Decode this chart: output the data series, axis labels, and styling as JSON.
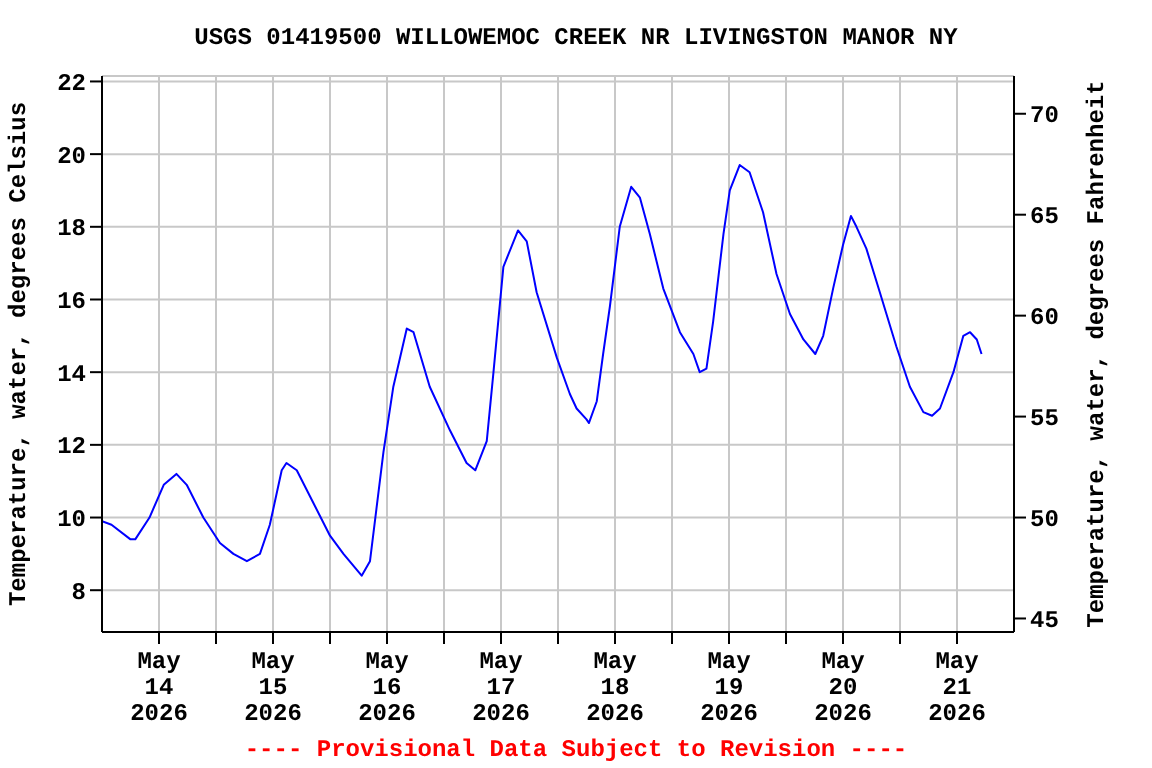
{
  "chart_data": {
    "type": "line",
    "title": "USGS 01419500 WILLOWEMOC CREEK NR LIVINGSTON MANOR NY",
    "ylabel": "Temperature, water, degrees Celsius",
    "y2label": "Temperature, water, degrees Fahrenheit",
    "annotations": [
      "---- Provisional Data Subject to Revision ----"
    ],
    "x": [
      "2026-05-13T12:00",
      "2026-05-13T14:00",
      "2026-05-13T18:00",
      "2026-05-13T19:00",
      "2026-05-13T22:00",
      "2026-05-14T01:00",
      "2026-05-14T03:40",
      "2026-05-14T05:50",
      "2026-05-14T09:20",
      "2026-05-14T12:50",
      "2026-05-14T15:40",
      "2026-05-14T18:30",
      "2026-05-14T21:15",
      "2026-05-14T23:20",
      "2026-05-15T01:50",
      "2026-05-15T02:50",
      "2026-05-15T05:00",
      "2026-05-15T08:30",
      "2026-05-15T12:00",
      "2026-05-15T14:50",
      "2026-05-15T18:40",
      "2026-05-15T20:25",
      "2026-05-15T23:15",
      "2026-05-16T01:20",
      "2026-05-16T04:10",
      "2026-05-16T05:35",
      "2026-05-16T09:00",
      "2026-05-16T13:15",
      "2026-05-16T16:45",
      "2026-05-16T18:35",
      "2026-05-16T21:00",
      "2026-05-16T22:25",
      "2026-05-17T00:30",
      "2026-05-17T03:35",
      "2026-05-17T05:25",
      "2026-05-17T07:30",
      "2026-05-17T11:45",
      "2026-05-17T14:30",
      "2026-05-17T15:55",
      "2026-05-17T18:00",
      "2026-05-17T18:30",
      "2026-05-17T20:10",
      "2026-05-17T21:30",
      "2026-05-17T22:55",
      "2026-05-18T01:00",
      "2026-05-18T03:25",
      "2026-05-18T05:15",
      "2026-05-18T07:20",
      "2026-05-18T10:10",
      "2026-05-18T13:40",
      "2026-05-18T16:30",
      "2026-05-18T17:50",
      "2026-05-18T19:15",
      "2026-05-18T20:40",
      "2026-05-18T22:50",
      "2026-05-19T00:10",
      "2026-05-19T02:15",
      "2026-05-19T04:20",
      "2026-05-19T07:10",
      "2026-05-19T10:00",
      "2026-05-19T12:50",
      "2026-05-19T15:40",
      "2026-05-19T18:10",
      "2026-05-19T19:50",
      "2026-05-19T21:55",
      "2026-05-20T00:00",
      "2026-05-20T01:40",
      "2026-05-20T02:50",
      "2026-05-20T04:55",
      "2026-05-20T07:45",
      "2026-05-20T11:15",
      "2026-05-20T14:05",
      "2026-05-20T16:55",
      "2026-05-20T18:45",
      "2026-05-20T20:25",
      "2026-05-20T23:15",
      "2026-05-21T01:20",
      "2026-05-21T02:45",
      "2026-05-21T04:10",
      "2026-05-21T05:10"
    ],
    "series": [
      {
        "color": "#0000ff",
        "values": [
          9.9,
          9.8,
          9.4,
          9.4,
          10.0,
          10.9,
          11.2,
          10.9,
          10.0,
          9.3,
          9.0,
          8.8,
          9.0,
          9.8,
          11.3,
          11.5,
          11.3,
          10.4,
          9.5,
          9.0,
          8.4,
          8.8,
          11.8,
          13.6,
          15.2,
          15.1,
          13.6,
          12.4,
          11.5,
          11.3,
          12.1,
          14.0,
          16.9,
          17.9,
          17.6,
          16.2,
          14.4,
          13.4,
          13.0,
          12.7,
          12.6,
          13.2,
          14.5,
          15.8,
          18.0,
          19.1,
          18.8,
          17.8,
          16.3,
          15.1,
          14.5,
          14.0,
          14.1,
          15.4,
          17.8,
          19.0,
          19.7,
          19.5,
          18.4,
          16.7,
          15.6,
          14.9,
          14.5,
          15.0,
          16.3,
          17.5,
          18.3,
          18.0,
          17.4,
          16.2,
          14.7,
          13.6,
          12.9,
          12.8,
          13.0,
          14.0,
          15.0,
          15.1,
          14.9,
          14.5
        ]
      }
    ],
    "xlim": [
      "2026-05-13T12:00",
      "2026-05-21T12:00"
    ],
    "xticks": [
      {
        "value": "2026-05-14T00:00",
        "label": "May 14 2026"
      },
      {
        "value": "2026-05-14T12:00",
        "label": null
      },
      {
        "value": "2026-05-15T00:00",
        "label": "May 15 2026"
      },
      {
        "value": "2026-05-15T12:00",
        "label": null
      },
      {
        "value": "2026-05-16T00:00",
        "label": "May 16 2026"
      },
      {
        "value": "2026-05-16T12:00",
        "label": null
      },
      {
        "value": "2026-05-17T00:00",
        "label": "May 17 2026"
      },
      {
        "value": "2026-05-17T12:00",
        "label": null
      },
      {
        "value": "2026-05-18T00:00",
        "label": "May 18 2026"
      },
      {
        "value": "2026-05-18T12:00",
        "label": null
      },
      {
        "value": "2026-05-19T00:00",
        "label": "May 19 2026"
      },
      {
        "value": "2026-05-19T12:00",
        "label": null
      },
      {
        "value": "2026-05-20T00:00",
        "label": "May 20 2026"
      },
      {
        "value": "2026-05-20T12:00",
        "label": null
      },
      {
        "value": "2026-05-21T00:00",
        "label": "May 21 2026"
      }
    ],
    "ylim": [
      6.85,
      22.15
    ],
    "yticks": [
      8,
      10,
      12,
      14,
      16,
      18,
      20,
      22
    ],
    "y2lim": [
      44.33,
      71.87
    ],
    "y2ticks": [
      45,
      50,
      55,
      60,
      65,
      70
    ],
    "grid": true,
    "marker": "none",
    "line_style": "solid"
  }
}
